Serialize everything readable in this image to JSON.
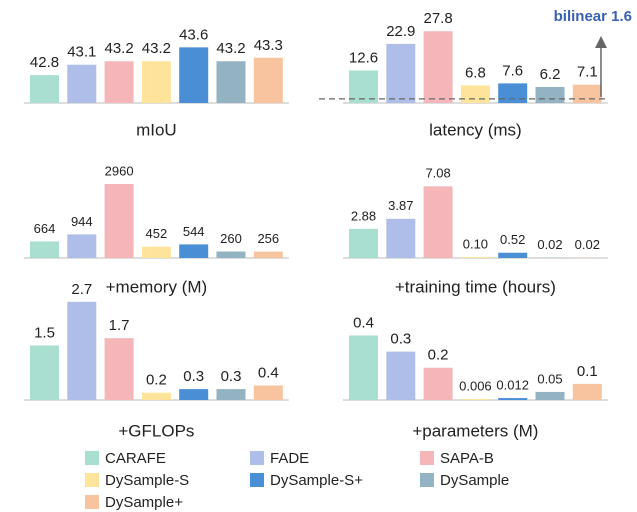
{
  "legend": {
    "labels": [
      "CARAFE",
      "FADE",
      "SAPA-B",
      "DySample-S",
      "DySample-S+",
      "DySample",
      "DySample+"
    ],
    "colors": [
      "#a8dfd0",
      "#aebee8",
      "#f4b6b8",
      "#fde49a",
      "#4a8fd6",
      "#93b3c2",
      "#f8c4a0"
    ]
  },
  "chart_data": [
    {
      "type": "bar",
      "title": "mIoU",
      "values": [
        42.8,
        43.1,
        43.2,
        43.2,
        43.6,
        43.2,
        43.3
      ],
      "ylim": [
        42,
        44.3
      ]
    },
    {
      "type": "bar",
      "title": "latency (ms)",
      "values": [
        12.6,
        22.9,
        27.8,
        6.8,
        7.6,
        6.2,
        7.1
      ],
      "ylim": [
        0,
        31
      ],
      "reference": {
        "label": "bilinear 1.6",
        "value": 1.6
      }
    },
    {
      "type": "bar",
      "title": "+memory (M)",
      "values": [
        664,
        944,
        2960,
        452,
        544,
        260,
        256
      ],
      "ylim": [
        0,
        3200
      ]
    },
    {
      "type": "bar",
      "title": "+training time (hours)",
      "values": [
        2.88,
        3.87,
        7.08,
        0.1,
        0.52,
        0.02,
        0.02
      ],
      "value_labels": [
        "2.88",
        "3.87",
        "7.08",
        "0.10",
        "0.52",
        "0.02",
        "0.02"
      ],
      "ylim": [
        0,
        7.9
      ]
    },
    {
      "type": "bar",
      "title": "+GFLOPs",
      "values": [
        1.5,
        2.7,
        1.7,
        0.2,
        0.3,
        0.3,
        0.4
      ],
      "ylim": [
        0,
        2.75
      ]
    },
    {
      "type": "bar",
      "title": "+parameters (M)",
      "values": [
        0.4,
        0.3,
        0.2,
        0.006,
        0.012,
        0.05,
        0.1
      ],
      "ylim": [
        0,
        0.62
      ]
    }
  ]
}
